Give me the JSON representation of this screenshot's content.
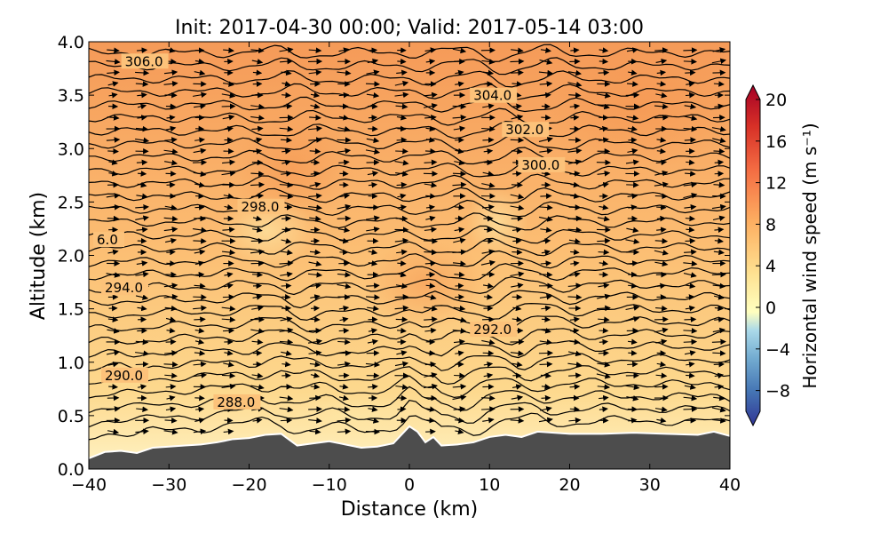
{
  "chart_data": {
    "type": "contour",
    "title": "Init: 2017-04-30 00:00; Valid: 2017-05-14 03:00",
    "xlabel": "Distance (km)",
    "ylabel": "Altitude (km)",
    "xlim": [
      -40,
      40
    ],
    "ylim": [
      0.0,
      4.0
    ],
    "x_ticks": [
      "−40",
      "−30",
      "−20",
      "−10",
      "0",
      "10",
      "20",
      "30",
      "40"
    ],
    "y_ticks": [
      "0.0",
      "0.5",
      "1.0",
      "1.5",
      "2.0",
      "2.5",
      "3.0",
      "3.5",
      "4.0"
    ],
    "colorbar": {
      "label": "Horizontal wind speed (m s⁻¹)",
      "range": [
        -10,
        20
      ],
      "extend": "both",
      "colormap": "RdYlBu_r",
      "ticks": [
        "−8",
        "−4",
        "0",
        "4",
        "8",
        "12",
        "16",
        "20"
      ]
    },
    "contour_labels": [
      {
        "text": "306.0",
        "x": -35.5,
        "y": 3.79
      },
      {
        "text": "304.0",
        "x": 8,
        "y": 3.47
      },
      {
        "text": "302.0",
        "x": 12,
        "y": 3.15
      },
      {
        "text": "300.0",
        "x": 14,
        "y": 2.82
      },
      {
        "text": "298.0",
        "x": -21,
        "y": 2.43
      },
      {
        "text": "6.0",
        "x": -39,
        "y": 2.12
      },
      {
        "text": "294.0",
        "x": -38,
        "y": 1.67
      },
      {
        "text": "292.0",
        "x": 8,
        "y": 1.28
      },
      {
        "text": "290.0",
        "x": -38,
        "y": 0.85
      },
      {
        "text": "288.0",
        "x": -24,
        "y": 0.6
      }
    ],
    "terrain": {
      "x": [
        -40,
        -38,
        -36,
        -34,
        -32,
        -30,
        -28,
        -26,
        -24,
        -22,
        -20,
        -18,
        -16,
        -14,
        -12,
        -10,
        -8,
        -6,
        -4,
        -2,
        0,
        1,
        2,
        3,
        4,
        6,
        8,
        10,
        12,
        14,
        16,
        18,
        20,
        24,
        28,
        32,
        36,
        38,
        40
      ],
      "y": [
        0.1,
        0.16,
        0.17,
        0.15,
        0.2,
        0.21,
        0.22,
        0.23,
        0.25,
        0.28,
        0.29,
        0.32,
        0.33,
        0.22,
        0.24,
        0.26,
        0.23,
        0.2,
        0.21,
        0.24,
        0.4,
        0.35,
        0.25,
        0.3,
        0.22,
        0.23,
        0.25,
        0.3,
        0.32,
        0.3,
        0.35,
        0.34,
        0.33,
        0.33,
        0.34,
        0.33,
        0.32,
        0.35,
        0.31
      ]
    }
  },
  "colors": {
    "terrain": "#4d4d4d",
    "contour": "#000000",
    "low_wind": "#fde9a0",
    "mid_wind": "#fcc87c",
    "high_wind": "#f4a05c"
  }
}
